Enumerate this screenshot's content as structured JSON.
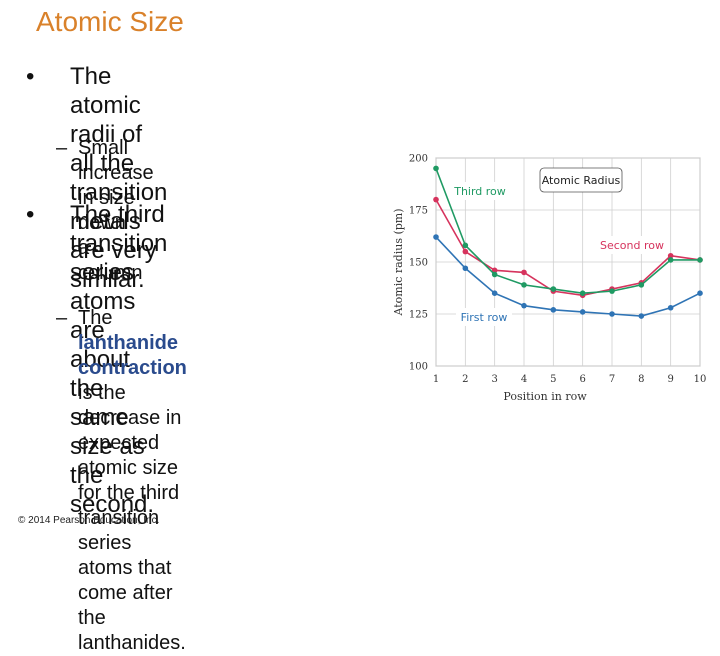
{
  "slide": {
    "title": "Atomic Size",
    "bullets": [
      {
        "lines": [
          "The atomic radii of all the transition",
          "metals are very similar."
        ]
      },
      {
        "lines": [
          "The third transition series",
          "atoms are about the same",
          "size as the second."
        ]
      }
    ],
    "sub_bullet_1": {
      "lines": [
        "Small increase in size down",
        "a column"
      ]
    },
    "sub_bullet_2": {
      "lead": "The ",
      "highlight": "lanthanide contraction",
      "lines": [
        "is the decrease in expected",
        "atomic size for the third",
        "transition series atoms that",
        "come after the lanthanides."
      ]
    },
    "bullet_glyph": "•",
    "dash_glyph": "–",
    "copyright": "© 2014 Pearson Education, Inc.",
    "colors": {
      "title": "#d9812a",
      "highlight": "#2a4b8d"
    }
  },
  "chart_data": {
    "type": "line",
    "title": "Atomic Radius",
    "xlabel": "Position in row",
    "ylabel": "Atomic radius (pm)",
    "x": [
      1,
      2,
      3,
      4,
      5,
      6,
      7,
      8,
      9,
      10
    ],
    "xlim": [
      1,
      10
    ],
    "ylim": [
      100,
      200
    ],
    "yticks": [
      100,
      125,
      150,
      175,
      200
    ],
    "grid": true,
    "series": [
      {
        "name": "First row",
        "color": "#2f74b5",
        "values": [
          162,
          147,
          135,
          129,
          127,
          126,
          125,
          124,
          128,
          135
        ]
      },
      {
        "name": "Second row",
        "color": "#d6335d",
        "values": [
          180,
          155,
          146,
          145,
          136,
          134,
          137,
          140,
          153,
          151
        ]
      },
      {
        "name": "Third row",
        "color": "#1f9a63",
        "values": [
          195,
          158,
          144,
          139,
          137,
          135,
          136,
          139,
          151,
          151
        ]
      }
    ]
  }
}
